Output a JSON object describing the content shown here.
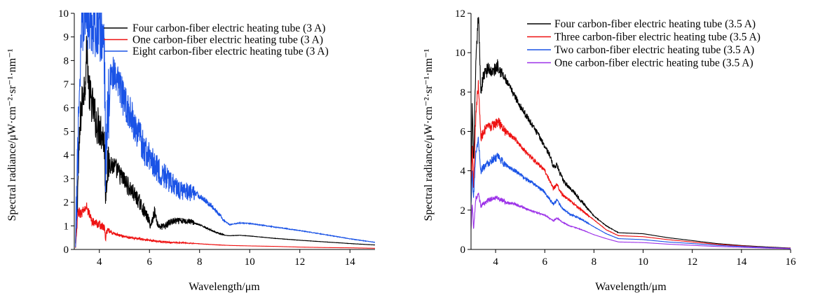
{
  "chart_data": [
    {
      "type": "line",
      "xlabel": "Wavelength/μm",
      "ylabel": "Spectral radiance/μW·cm⁻²·sr⁻¹·nm⁻¹",
      "xlim": [
        3,
        15
      ],
      "ylim": [
        0,
        10
      ],
      "xticks": [
        4,
        6,
        8,
        10,
        12,
        14
      ],
      "yticks": [
        0,
        1,
        2,
        3,
        4,
        5,
        6,
        7,
        8,
        9,
        10
      ],
      "legend_position": "top-right",
      "series": [
        {
          "name": "Four carbon-fiber electric heating tube (3 A)",
          "color": "#000000",
          "noise": 0.85,
          "points": [
            [
              3.05,
              0.2
            ],
            [
              3.15,
              3.0
            ],
            [
              3.25,
              5.6
            ],
            [
              3.35,
              6.6
            ],
            [
              3.45,
              7.3
            ],
            [
              3.5,
              8.6
            ],
            [
              3.6,
              6.6
            ],
            [
              3.75,
              6.0
            ],
            [
              3.9,
              5.3
            ],
            [
              4.05,
              5.1
            ],
            [
              4.2,
              4.6
            ],
            [
              4.25,
              2.4
            ],
            [
              4.3,
              3.3
            ],
            [
              4.4,
              3.7
            ],
            [
              4.6,
              3.5
            ],
            [
              4.8,
              3.2
            ],
            [
              5.0,
              2.9
            ],
            [
              5.2,
              2.6
            ],
            [
              5.4,
              2.3
            ],
            [
              5.6,
              2.0
            ],
            [
              5.8,
              1.6
            ],
            [
              5.95,
              1.3
            ],
            [
              6.05,
              1.0
            ],
            [
              6.2,
              1.6
            ],
            [
              6.35,
              1.0
            ],
            [
              6.5,
              0.95
            ],
            [
              6.65,
              1.0
            ],
            [
              6.8,
              1.15
            ],
            [
              7.0,
              1.2
            ],
            [
              7.3,
              1.2
            ],
            [
              7.6,
              1.2
            ],
            [
              7.8,
              1.12
            ],
            [
              8.2,
              0.95
            ],
            [
              8.6,
              0.75
            ],
            [
              9.0,
              0.6
            ],
            [
              9.2,
              0.58
            ],
            [
              9.6,
              0.6
            ],
            [
              10.0,
              0.57
            ],
            [
              11.0,
              0.47
            ],
            [
              12.0,
              0.39
            ],
            [
              13.0,
              0.32
            ],
            [
              14.0,
              0.25
            ],
            [
              15.0,
              0.19
            ]
          ]
        },
        {
          "name": "One carbon-fiber electric heating tube (3 A)",
          "color": "#ee1111",
          "noise": 0.3,
          "points": [
            [
              3.05,
              0.05
            ],
            [
              3.15,
              1.6
            ],
            [
              3.3,
              1.5
            ],
            [
              3.4,
              1.7
            ],
            [
              3.5,
              1.8
            ],
            [
              3.7,
              1.2
            ],
            [
              3.9,
              1.1
            ],
            [
              4.1,
              1.0
            ],
            [
              4.2,
              0.9
            ],
            [
              4.25,
              0.45
            ],
            [
              4.3,
              0.8
            ],
            [
              4.5,
              0.7
            ],
            [
              4.8,
              0.6
            ],
            [
              5.2,
              0.5
            ],
            [
              5.6,
              0.45
            ],
            [
              6.0,
              0.38
            ],
            [
              6.4,
              0.34
            ],
            [
              6.8,
              0.3
            ],
            [
              7.4,
              0.28
            ],
            [
              8.0,
              0.24
            ],
            [
              8.6,
              0.2
            ],
            [
              9.2,
              0.17
            ],
            [
              10.0,
              0.15
            ],
            [
              11.0,
              0.13
            ],
            [
              12.0,
              0.1
            ],
            [
              13.0,
              0.08
            ],
            [
              14.0,
              0.07
            ],
            [
              15.0,
              0.05
            ]
          ]
        },
        {
          "name": "Eight carbon-fiber electric heating tube (3 A)",
          "color": "#1a53e6",
          "noise": 1.6,
          "points": [
            [
              3.05,
              0.0
            ],
            [
              3.15,
              5.0
            ],
            [
              3.3,
              10.0
            ],
            [
              3.6,
              10.0
            ],
            [
              3.9,
              9.6
            ],
            [
              4.1,
              9.2
            ],
            [
              4.2,
              8.4
            ],
            [
              4.25,
              3.5
            ],
            [
              4.3,
              5.0
            ],
            [
              4.45,
              7.6
            ],
            [
              4.6,
              7.2
            ],
            [
              4.8,
              6.8
            ],
            [
              5.0,
              6.3
            ],
            [
              5.2,
              5.8
            ],
            [
              5.4,
              5.3
            ],
            [
              5.6,
              4.8
            ],
            [
              5.8,
              4.2
            ],
            [
              6.0,
              3.9
            ],
            [
              6.2,
              3.6
            ],
            [
              6.4,
              3.3
            ],
            [
              6.6,
              3.1
            ],
            [
              6.8,
              2.9
            ],
            [
              7.0,
              2.7
            ],
            [
              7.3,
              2.5
            ],
            [
              7.6,
              2.42
            ],
            [
              7.8,
              2.4
            ],
            [
              8.2,
              2.1
            ],
            [
              8.6,
              1.7
            ],
            [
              9.0,
              1.2
            ],
            [
              9.2,
              1.05
            ],
            [
              9.6,
              1.12
            ],
            [
              10.0,
              1.1
            ],
            [
              11.0,
              0.95
            ],
            [
              12.0,
              0.8
            ],
            [
              13.0,
              0.63
            ],
            [
              14.0,
              0.45
            ],
            [
              15.0,
              0.3
            ]
          ]
        }
      ]
    },
    {
      "type": "line",
      "xlabel": "Wavelength/μm",
      "ylabel": "Spectral radiance/μW·cm⁻²·sr⁻¹·nm⁻¹",
      "xlim": [
        3,
        16
      ],
      "ylim": [
        0,
        12
      ],
      "xticks": [
        4,
        6,
        8,
        10,
        12,
        14,
        16
      ],
      "yticks": [
        0,
        2,
        4,
        6,
        8,
        10,
        12
      ],
      "legend_position": "top-right",
      "series": [
        {
          "name": "Four carbon-fiber electric heating tube (3.5 A)",
          "color": "#000000",
          "noise": 0.35,
          "points": [
            [
              3.0,
              3.0
            ],
            [
              3.05,
              7.5
            ],
            [
              3.1,
              4.2
            ],
            [
              3.2,
              9.5
            ],
            [
              3.3,
              12.0
            ],
            [
              3.4,
              8.0
            ],
            [
              3.5,
              8.8
            ],
            [
              3.7,
              9.2
            ],
            [
              3.9,
              9.0
            ],
            [
              4.1,
              9.4
            ],
            [
              4.3,
              8.8
            ],
            [
              4.6,
              8.2
            ],
            [
              5.0,
              7.3
            ],
            [
              5.4,
              6.5
            ],
            [
              5.8,
              5.7
            ],
            [
              6.2,
              4.8
            ],
            [
              6.35,
              4.2
            ],
            [
              6.5,
              4.3
            ],
            [
              6.6,
              3.9
            ],
            [
              6.8,
              3.4
            ],
            [
              7.2,
              2.9
            ],
            [
              7.6,
              2.3
            ],
            [
              8.0,
              1.7
            ],
            [
              8.5,
              1.2
            ],
            [
              9.0,
              0.85
            ],
            [
              10.0,
              0.8
            ],
            [
              11.0,
              0.6
            ],
            [
              12.0,
              0.45
            ],
            [
              13.0,
              0.3
            ],
            [
              14.0,
              0.2
            ],
            [
              15.0,
              0.13
            ],
            [
              16.0,
              0.07
            ]
          ]
        },
        {
          "name": "Three carbon-fiber electric heating tube (3.5 A)",
          "color": "#ee1111",
          "noise": 0.25,
          "points": [
            [
              3.0,
              2.5
            ],
            [
              3.05,
              5.5
            ],
            [
              3.1,
              3.2
            ],
            [
              3.2,
              7.0
            ],
            [
              3.3,
              8.4
            ],
            [
              3.4,
              5.6
            ],
            [
              3.5,
              6.0
            ],
            [
              3.7,
              6.2
            ],
            [
              3.9,
              6.3
            ],
            [
              4.1,
              6.5
            ],
            [
              4.4,
              6.0
            ],
            [
              4.8,
              5.6
            ],
            [
              5.2,
              5.0
            ],
            [
              5.6,
              4.5
            ],
            [
              6.0,
              4.0
            ],
            [
              6.35,
              3.1
            ],
            [
              6.5,
              3.3
            ],
            [
              6.7,
              2.8
            ],
            [
              7.0,
              2.5
            ],
            [
              7.4,
              2.1
            ],
            [
              8.0,
              1.5
            ],
            [
              8.5,
              1.0
            ],
            [
              9.0,
              0.7
            ],
            [
              10.0,
              0.65
            ],
            [
              11.0,
              0.5
            ],
            [
              12.0,
              0.38
            ],
            [
              13.0,
              0.26
            ],
            [
              14.0,
              0.18
            ],
            [
              15.0,
              0.11
            ],
            [
              16.0,
              0.06
            ]
          ]
        },
        {
          "name": "Two carbon-fiber electric heating tube (3.5 A)",
          "color": "#1a53e6",
          "noise": 0.2,
          "points": [
            [
              3.0,
              2.2
            ],
            [
              3.05,
              4.0
            ],
            [
              3.1,
              2.6
            ],
            [
              3.2,
              5.0
            ],
            [
              3.3,
              5.6
            ],
            [
              3.4,
              4.0
            ],
            [
              3.5,
              4.2
            ],
            [
              3.7,
              4.4
            ],
            [
              3.9,
              4.6
            ],
            [
              4.1,
              4.7
            ],
            [
              4.4,
              4.3
            ],
            [
              4.8,
              4.0
            ],
            [
              5.2,
              3.6
            ],
            [
              5.6,
              3.3
            ],
            [
              6.0,
              2.9
            ],
            [
              6.35,
              2.3
            ],
            [
              6.5,
              2.5
            ],
            [
              6.7,
              2.1
            ],
            [
              7.0,
              1.8
            ],
            [
              7.4,
              1.6
            ],
            [
              8.0,
              1.15
            ],
            [
              8.5,
              0.8
            ],
            [
              9.0,
              0.55
            ],
            [
              10.0,
              0.5
            ],
            [
              11.0,
              0.38
            ],
            [
              12.0,
              0.3
            ],
            [
              13.0,
              0.21
            ],
            [
              14.0,
              0.15
            ],
            [
              15.0,
              0.1
            ],
            [
              16.0,
              0.05
            ]
          ]
        },
        {
          "name": "One carbon-fiber electric heating tube (3.5 A)",
          "color": "#9b30e8",
          "noise": 0.12,
          "points": [
            [
              3.0,
              1.0
            ],
            [
              3.05,
              2.4
            ],
            [
              3.1,
              1.0
            ],
            [
              3.2,
              2.6
            ],
            [
              3.3,
              2.8
            ],
            [
              3.4,
              2.2
            ],
            [
              3.5,
              2.3
            ],
            [
              3.7,
              2.5
            ],
            [
              3.9,
              2.6
            ],
            [
              4.1,
              2.6
            ],
            [
              4.4,
              2.4
            ],
            [
              4.8,
              2.3
            ],
            [
              5.2,
              2.1
            ],
            [
              5.6,
              1.9
            ],
            [
              6.0,
              1.75
            ],
            [
              6.35,
              1.45
            ],
            [
              6.5,
              1.6
            ],
            [
              6.7,
              1.4
            ],
            [
              7.0,
              1.2
            ],
            [
              7.4,
              1.05
            ],
            [
              8.0,
              0.75
            ],
            [
              8.5,
              0.55
            ],
            [
              9.0,
              0.38
            ],
            [
              10.0,
              0.35
            ],
            [
              11.0,
              0.27
            ],
            [
              12.0,
              0.21
            ],
            [
              13.0,
              0.15
            ],
            [
              14.0,
              0.11
            ],
            [
              15.0,
              0.07
            ],
            [
              16.0,
              0.04
            ]
          ]
        }
      ]
    }
  ]
}
